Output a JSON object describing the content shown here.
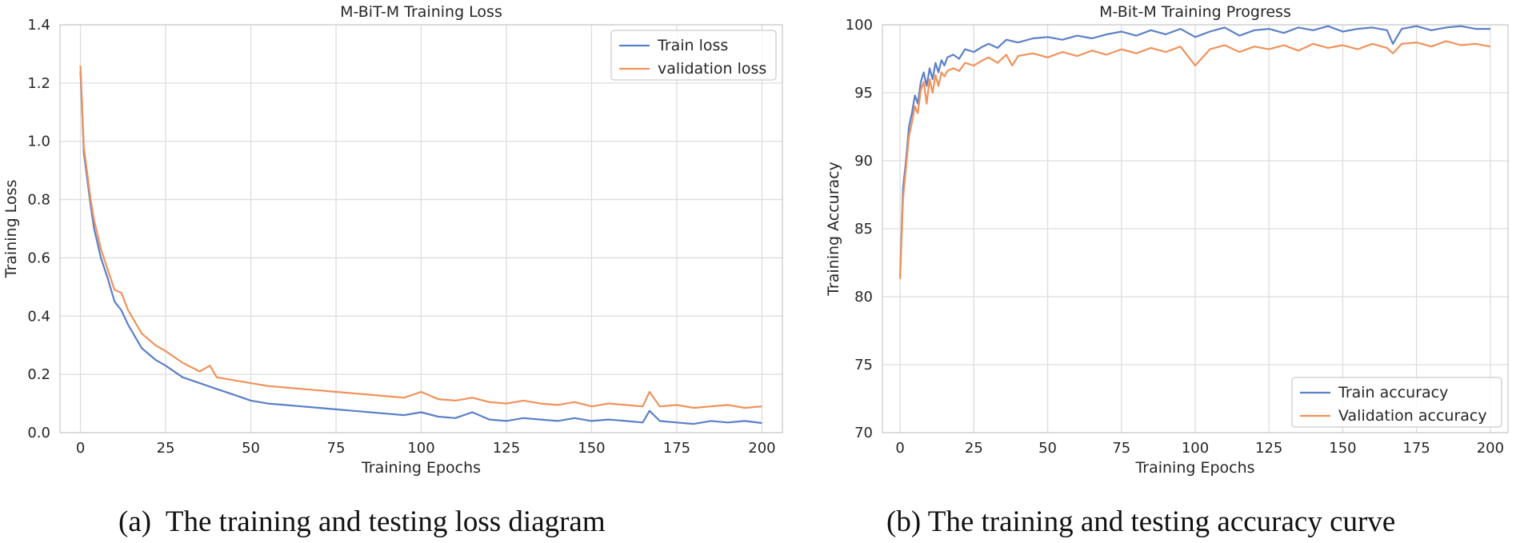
{
  "colors": {
    "train": "#5b7fc8",
    "validation": "#f0925a"
  },
  "captions": {
    "a": "(a)  The training and testing loss diagram",
    "b": "(b) The training and testing accuracy curve"
  },
  "chart_data": [
    {
      "type": "line",
      "title": "M-BiT-M Training Loss",
      "xlabel": "Training Epochs",
      "ylabel": "Training Loss",
      "xlim": [
        -6,
        206
      ],
      "ylim": [
        0.0,
        1.4
      ],
      "xticks": [
        0,
        25,
        50,
        75,
        100,
        125,
        150,
        175,
        200
      ],
      "yticks": [
        0.0,
        0.2,
        0.4,
        0.6,
        0.8,
        1.0,
        1.2,
        1.4
      ],
      "ytick_labels": [
        "0.0",
        "0.2",
        "0.4",
        "0.6",
        "0.8",
        "1.0",
        "1.2",
        "1.4"
      ],
      "grid": true,
      "legend_position": "top-right",
      "series": [
        {
          "name": "Train loss",
          "color_key": "train",
          "x": [
            0,
            1,
            2,
            3,
            4,
            5,
            6,
            8,
            10,
            12,
            14,
            16,
            18,
            20,
            22,
            25,
            30,
            35,
            40,
            45,
            50,
            55,
            60,
            65,
            70,
            75,
            80,
            85,
            90,
            95,
            100,
            105,
            110,
            115,
            120,
            125,
            130,
            135,
            140,
            145,
            150,
            155,
            160,
            165,
            167,
            170,
            175,
            180,
            185,
            190,
            195,
            200
          ],
          "values": [
            1.24,
            0.96,
            0.87,
            0.78,
            0.7,
            0.65,
            0.6,
            0.53,
            0.45,
            0.42,
            0.37,
            0.33,
            0.29,
            0.27,
            0.25,
            0.23,
            0.19,
            0.17,
            0.15,
            0.13,
            0.11,
            0.1,
            0.095,
            0.09,
            0.085,
            0.08,
            0.075,
            0.07,
            0.065,
            0.06,
            0.07,
            0.055,
            0.05,
            0.07,
            0.045,
            0.04,
            0.05,
            0.045,
            0.04,
            0.05,
            0.04,
            0.045,
            0.04,
            0.035,
            0.075,
            0.04,
            0.035,
            0.03,
            0.04,
            0.035,
            0.04,
            0.033
          ]
        },
        {
          "name": "validation loss",
          "color_key": "validation",
          "x": [
            0,
            1,
            2,
            3,
            4,
            5,
            6,
            8,
            10,
            12,
            14,
            16,
            18,
            20,
            22,
            25,
            30,
            35,
            38,
            40,
            45,
            50,
            55,
            60,
            65,
            70,
            75,
            80,
            85,
            90,
            95,
            100,
            105,
            110,
            115,
            120,
            125,
            130,
            135,
            140,
            145,
            150,
            155,
            160,
            165,
            167,
            170,
            175,
            180,
            185,
            190,
            195,
            200
          ],
          "values": [
            1.26,
            0.98,
            0.89,
            0.8,
            0.73,
            0.68,
            0.63,
            0.56,
            0.49,
            0.48,
            0.42,
            0.38,
            0.34,
            0.32,
            0.3,
            0.28,
            0.24,
            0.21,
            0.23,
            0.19,
            0.18,
            0.17,
            0.16,
            0.155,
            0.15,
            0.145,
            0.14,
            0.135,
            0.13,
            0.125,
            0.12,
            0.14,
            0.115,
            0.11,
            0.12,
            0.105,
            0.1,
            0.11,
            0.1,
            0.095,
            0.105,
            0.09,
            0.1,
            0.095,
            0.09,
            0.14,
            0.09,
            0.095,
            0.085,
            0.09,
            0.095,
            0.085,
            0.09
          ]
        }
      ]
    },
    {
      "type": "line",
      "title": "M-Bit-M Training Progress",
      "xlabel": "Training Epochs",
      "ylabel": "Training Accuracy",
      "xlim": [
        -6,
        206
      ],
      "ylim": [
        70,
        100
      ],
      "xticks": [
        0,
        25,
        50,
        75,
        100,
        125,
        150,
        175,
        200
      ],
      "yticks": [
        70,
        75,
        80,
        85,
        90,
        95,
        100
      ],
      "ytick_labels": [
        "70",
        "75",
        "80",
        "85",
        "90",
        "95",
        "100"
      ],
      "grid": true,
      "legend_position": "bottom-right",
      "series": [
        {
          "name": "Train accuracy",
          "color_key": "train",
          "x": [
            0,
            1,
            2,
            3,
            4,
            5,
            6,
            7,
            8,
            9,
            10,
            11,
            12,
            13,
            14,
            15,
            16,
            18,
            20,
            22,
            25,
            28,
            30,
            33,
            36,
            40,
            45,
            50,
            55,
            60,
            65,
            70,
            75,
            80,
            85,
            90,
            95,
            100,
            105,
            110,
            115,
            120,
            125,
            130,
            135,
            140,
            145,
            150,
            155,
            160,
            165,
            167,
            170,
            175,
            180,
            185,
            190,
            195,
            200
          ],
          "values": [
            81.5,
            88.0,
            90.0,
            92.5,
            93.5,
            94.8,
            94.2,
            95.8,
            96.5,
            95.5,
            96.8,
            96.0,
            97.2,
            96.5,
            97.4,
            97.0,
            97.6,
            97.8,
            97.5,
            98.2,
            98.0,
            98.4,
            98.6,
            98.3,
            98.9,
            98.7,
            99.0,
            99.1,
            98.9,
            99.2,
            99.0,
            99.3,
            99.5,
            99.2,
            99.6,
            99.3,
            99.7,
            99.1,
            99.5,
            99.8,
            99.2,
            99.6,
            99.7,
            99.4,
            99.8,
            99.6,
            99.9,
            99.5,
            99.7,
            99.8,
            99.6,
            98.6,
            99.7,
            99.9,
            99.6,
            99.8,
            99.9,
            99.7,
            99.7
          ]
        },
        {
          "name": "Validation accuracy",
          "color_key": "validation",
          "x": [
            0,
            1,
            2,
            3,
            4,
            5,
            6,
            7,
            8,
            9,
            10,
            11,
            12,
            13,
            14,
            15,
            16,
            18,
            20,
            22,
            25,
            28,
            30,
            33,
            36,
            38,
            40,
            45,
            50,
            55,
            60,
            65,
            70,
            75,
            80,
            85,
            90,
            95,
            100,
            105,
            110,
            115,
            120,
            125,
            130,
            135,
            140,
            145,
            150,
            155,
            160,
            165,
            167,
            170,
            175,
            180,
            185,
            190,
            195,
            200
          ],
          "values": [
            81.3,
            87.2,
            89.5,
            91.8,
            92.8,
            94.0,
            93.5,
            95.2,
            95.8,
            94.2,
            96.0,
            95.0,
            96.3,
            95.5,
            96.5,
            96.2,
            96.6,
            96.8,
            96.6,
            97.2,
            97.0,
            97.4,
            97.6,
            97.2,
            97.8,
            97.0,
            97.7,
            97.9,
            97.6,
            98.0,
            97.7,
            98.1,
            97.8,
            98.2,
            97.9,
            98.3,
            98.0,
            98.4,
            97.0,
            98.2,
            98.5,
            98.0,
            98.4,
            98.2,
            98.5,
            98.1,
            98.6,
            98.3,
            98.5,
            98.2,
            98.6,
            98.3,
            97.9,
            98.6,
            98.7,
            98.4,
            98.8,
            98.5,
            98.6,
            98.4
          ]
        }
      ]
    }
  ]
}
